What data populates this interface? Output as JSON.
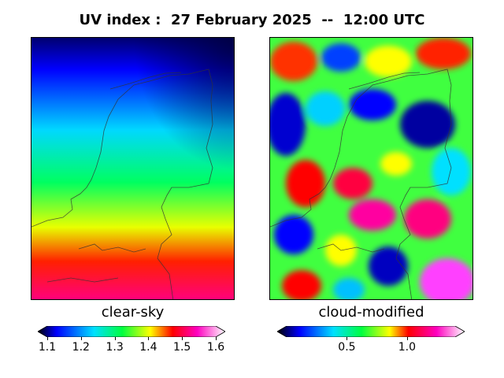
{
  "title": "UV index :  27 February 2025  --  12:00 UTC",
  "panels": [
    {
      "label": "clear-sky"
    },
    {
      "label": "cloud-modified"
    }
  ],
  "colorbars": [
    {
      "min": 1.1,
      "max": 1.6,
      "ticks": [
        "1.1",
        "1.2",
        "1.3",
        "1.4",
        "1.5",
        "1.6"
      ],
      "tick_values": [
        1.1,
        1.2,
        1.3,
        1.4,
        1.5,
        1.6
      ]
    },
    {
      "min": 0.0,
      "max": 1.4,
      "ticks": [
        "0.5",
        "1.0"
      ],
      "tick_values": [
        0.5,
        1.0
      ]
    }
  ],
  "colors": {
    "colormap": [
      "#000000",
      "#0000ff",
      "#00e0ff",
      "#00ff40",
      "#ffff00",
      "#ff0000",
      "#ff00c0",
      "#ffffff"
    ]
  }
}
